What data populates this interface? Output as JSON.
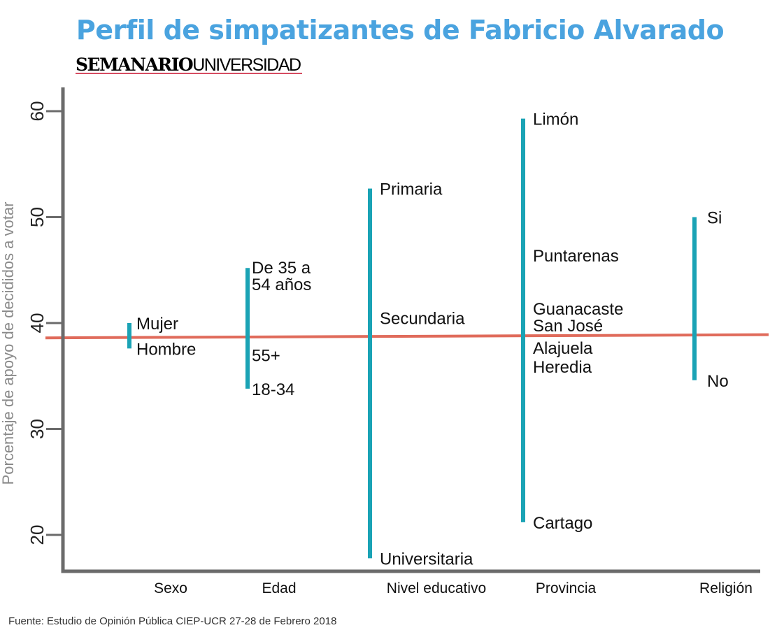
{
  "title": "Perfil de simpatizantes de Fabricio Alvarado",
  "brand": {
    "strong": "SEMANARIO",
    "light": "UNIVERSIDAD"
  },
  "source": "Fuente: Estudio de Opinión Pública CIEP-UCR 27-28 de Febrero 2018",
  "colors": {
    "title": "#4aa3df",
    "brand": "#c8102e",
    "segment": "#1aa3b5",
    "reference_line": "#e06b5b",
    "axis": "#6b6b6b"
  },
  "chart_data": {
    "type": "range",
    "title": "Perfil de simpatizantes de Fabricio Alvarado",
    "ylabel": "Porcentaje de apoyo de decididos a votar",
    "xlabel": "",
    "ylim": [
      15,
      64
    ],
    "yticks": [
      {
        "value": 20,
        "label": "20"
      },
      {
        "value": 30,
        "label": "30"
      },
      {
        "value": 40,
        "label": "40"
      },
      {
        "value": 50,
        "label": "50"
      },
      {
        "value": 60,
        "label": "60"
      }
    ],
    "reference_line": {
      "start": 38.6,
      "end": 38.9
    },
    "grid": false,
    "categories": [
      {
        "name": "Sexo",
        "range": [
          37.6,
          40.0
        ],
        "points": [
          {
            "label": "Mujer",
            "value": 40.0
          },
          {
            "label": "Hombre",
            "value": 37.6
          }
        ]
      },
      {
        "name": "Edad",
        "range": [
          33.8,
          45.2
        ],
        "points": [
          {
            "label": "De 35 a 54 años",
            "value": 45.2
          },
          {
            "label": "55+",
            "value": 37.0
          },
          {
            "label": "18-34",
            "value": 33.8
          }
        ]
      },
      {
        "name": "Nivel educativo",
        "range": [
          17.8,
          52.7
        ],
        "points": [
          {
            "label": "Primaria",
            "value": 52.7
          },
          {
            "label": "Secundaria",
            "value": 40.5
          },
          {
            "label": "Universitaria",
            "value": 17.8
          }
        ]
      },
      {
        "name": "Provincia",
        "range": [
          21.2,
          59.3
        ],
        "points": [
          {
            "label": "Limón",
            "value": 59.3
          },
          {
            "label": "Puntarenas",
            "value": 46.4
          },
          {
            "label": "Guanacaste",
            "value": 41.4
          },
          {
            "label": "San José",
            "value": 39.8
          },
          {
            "label": "Alajuela",
            "value": 37.7
          },
          {
            "label": "Heredia",
            "value": 35.9
          },
          {
            "label": "Cartago",
            "value": 21.2
          }
        ]
      },
      {
        "name": "Religión",
        "range": [
          34.6,
          50.0
        ],
        "points": [
          {
            "label": "Si",
            "value": 50.0
          },
          {
            "label": "No",
            "value": 34.6
          }
        ]
      }
    ]
  }
}
